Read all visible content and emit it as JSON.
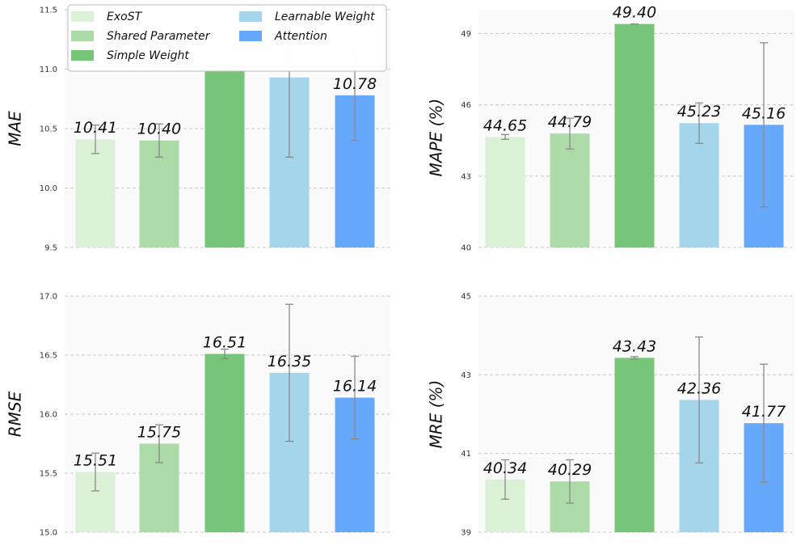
{
  "chart_data": [
    {
      "type": "bar",
      "ylabel": "MAE",
      "ylim": [
        9.5,
        11.5
      ],
      "yticks": [
        "9.5",
        "10.0",
        "10.5",
        "11.0",
        "11.5"
      ],
      "categories": [
        "ExoST",
        "Shared Parameter",
        "Simple Weight",
        "Learnable Weight",
        "Attention"
      ],
      "values": [
        10.41,
        10.4,
        11.0,
        10.93,
        10.78
      ],
      "errors": [
        0.12,
        0.14,
        0.0,
        0.67,
        0.38
      ],
      "labels": [
        "10.41",
        "10.40",
        "",
        "",
        "10.78"
      ],
      "grid": true
    },
    {
      "type": "bar",
      "ylabel": "MAPE (%)",
      "ylim": [
        40,
        50
      ],
      "yticks": [
        "40",
        "43",
        "46",
        "49"
      ],
      "ytick_values": [
        40,
        43,
        46,
        49
      ],
      "categories": [
        "ExoST",
        "Shared Parameter",
        "Simple Weight",
        "Learnable Weight",
        "Attention"
      ],
      "values": [
        44.65,
        44.79,
        49.4,
        45.23,
        45.16
      ],
      "errors": [
        0.1,
        0.65,
        0.0,
        0.85,
        3.45
      ],
      "labels": [
        "44.65",
        "44.79",
        "49.40",
        "45.23",
        "45.16"
      ],
      "grid": true
    },
    {
      "type": "bar",
      "ylabel": "RMSE",
      "ylim": [
        15.0,
        17.0
      ],
      "yticks": [
        "15.0",
        "15.5",
        "16.0",
        "16.5",
        "17.0"
      ],
      "categories": [
        "ExoST",
        "Shared Parameter",
        "Simple Weight",
        "Learnable Weight",
        "Attention"
      ],
      "values": [
        15.51,
        15.75,
        16.51,
        16.35,
        16.14
      ],
      "errors": [
        0.16,
        0.16,
        0.04,
        0.58,
        0.35
      ],
      "labels": [
        "15.51",
        "15.75",
        "16.51",
        "16.35",
        "16.14"
      ],
      "grid": true
    },
    {
      "type": "bar",
      "ylabel": "MRE (%)",
      "ylim": [
        39,
        45
      ],
      "yticks": [
        "39",
        "41",
        "43",
        "45"
      ],
      "ytick_values": [
        39,
        41,
        43,
        45
      ],
      "categories": [
        "ExoST",
        "Shared Parameter",
        "Simple Weight",
        "Learnable Weight",
        "Attention"
      ],
      "values": [
        40.34,
        40.29,
        43.43,
        42.36,
        41.77
      ],
      "errors": [
        0.5,
        0.55,
        0.03,
        1.6,
        1.5
      ],
      "labels": [
        "40.34",
        "40.29",
        "43.43",
        "42.36",
        "41.77"
      ],
      "grid": true
    }
  ],
  "legend": {
    "placement": "top-left of first panel",
    "items": [
      {
        "label": "ExoST",
        "color": "#daf1d5"
      },
      {
        "label": "Shared Parameter",
        "color": "#acdba7"
      },
      {
        "label": "Simple Weight",
        "color": "#76c578"
      },
      {
        "label": "Learnable Weight",
        "color": "#a4d5ea"
      },
      {
        "label": "Attention",
        "color": "#66a9fb"
      }
    ]
  },
  "colors": [
    "#daf1d5",
    "#acdba7",
    "#76c578",
    "#a4d5ea",
    "#66a9fb"
  ]
}
